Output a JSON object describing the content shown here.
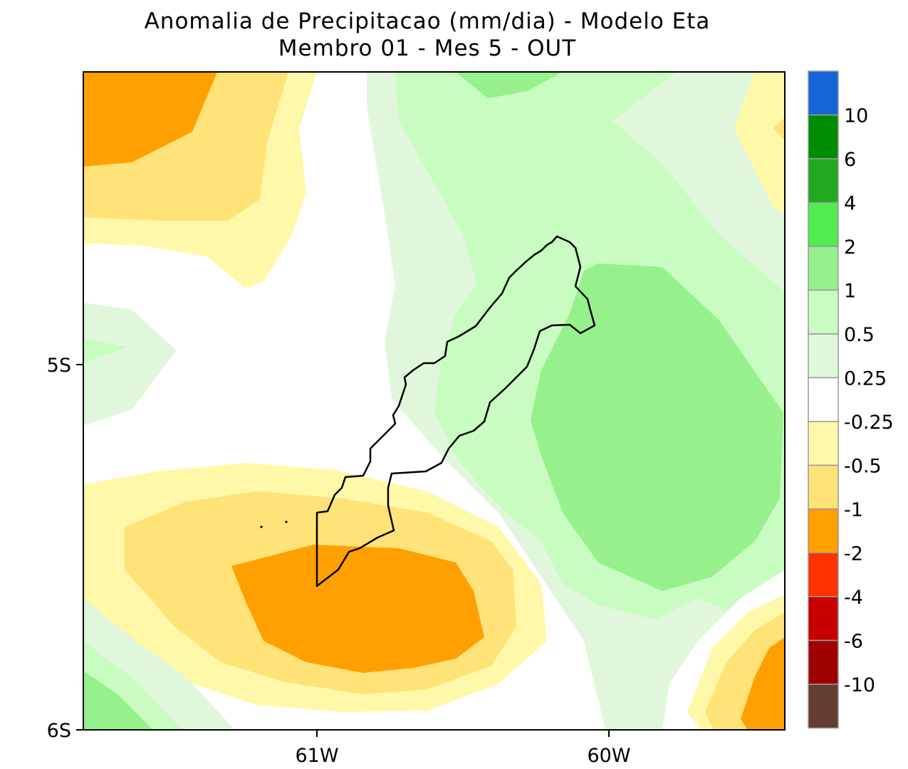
{
  "title_line1": "Anomalia de Precipitacao (mm/dia) - Modelo Eta",
  "title_line2": "Membro 01 - Mes 5 - OUT",
  "axes": {
    "lat_ticks": [
      "5S",
      "6S"
    ],
    "lon_ticks": [
      "61W",
      "60W"
    ]
  },
  "colorbar": {
    "labels": [
      "10",
      "6",
      "4",
      "2",
      "1",
      "0.5",
      "0.25",
      "-0.25",
      "-0.5",
      "-1",
      "-2",
      "-4",
      "-6",
      "-10"
    ],
    "colors": [
      "#1565d8",
      "#008c00",
      "#1faa1f",
      "#50ec50",
      "#96f08c",
      "#c8fcc0",
      "#e0f7dc",
      "#ffffff",
      "#fff8a8",
      "#ffe278",
      "#ffa000",
      "#ff3200",
      "#c80000",
      "#a00000",
      "#643c32"
    ]
  },
  "map_colors": {
    "orange": "#ffa000",
    "gold": "#ffe278",
    "pale_yellow": "#fff8a8",
    "pale_green": "#e0f7dc",
    "light_green": "#c8fcc0",
    "green": "#96f08c"
  }
}
